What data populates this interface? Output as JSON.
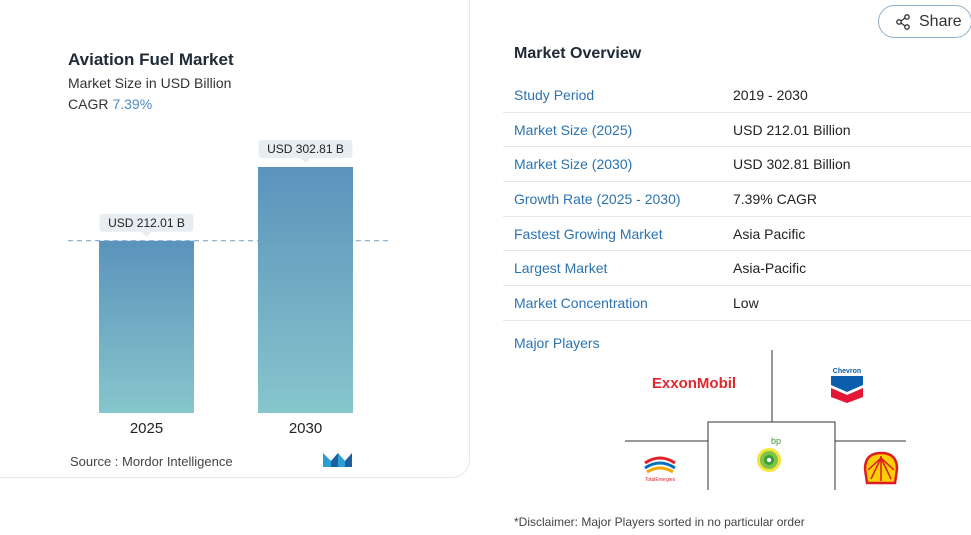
{
  "chart": {
    "title": "Aviation Fuel Market",
    "subtitle": "Market Size in USD Billion",
    "cagr_label": "CAGR",
    "cagr_value": "7.39%",
    "source": "Source :  Mordor Intelligence"
  },
  "chart_data": {
    "type": "bar",
    "categories": [
      "2025",
      "2030"
    ],
    "values": [
      212.01,
      302.81
    ],
    "data_labels": [
      "USD 212.01 B",
      "USD 302.81 B"
    ],
    "title": "Aviation Fuel Market",
    "subtitle": "Market Size in USD Billion",
    "ylim": [
      0,
      302.81
    ],
    "grid": false,
    "reference_line": "dashed at 2025 value",
    "colors": {
      "bar_top": "#5b93bc",
      "bar_bottom": "#86c6cc",
      "label_bg": "#e8edf2"
    }
  },
  "share": {
    "label": "Share",
    "icon": "share-icon"
  },
  "overview": {
    "title": "Market Overview",
    "rows": [
      {
        "label": "Study Period",
        "value": "2019 - 2030"
      },
      {
        "label": "Market Size (2025)",
        "value": "USD 212.01 Billion"
      },
      {
        "label": "Market Size (2030)",
        "value": "USD 302.81 Billion"
      },
      {
        "label": "Growth Rate (2025 - 2030)",
        "value": "7.39% CAGR"
      },
      {
        "label": "Fastest Growing Market",
        "value": "Asia Pacific"
      },
      {
        "label": "Largest Market",
        "value": "Asia-Pacific"
      },
      {
        "label": "Market Concentration",
        "value": "Low"
      }
    ]
  },
  "players": {
    "title": "Major Players",
    "logos": {
      "exxon": "ExxonMobil",
      "chevron": "Chevron",
      "bp": "bp",
      "total": "TotalEnergies",
      "shell": "shell-logo"
    }
  },
  "disclaimer": "*Disclaimer: Major Players sorted in no particular order",
  "colors": {
    "accent_blue": "#2b73b1",
    "cagr_blue": "#4a8bc2",
    "exxon_red": "#e3262e",
    "chevron_blue": "#0b5eab",
    "chevron_red": "#e21836",
    "bp_green": "#3c9a35",
    "shell_yellow": "#fbce07",
    "shell_red": "#dd1d21"
  }
}
